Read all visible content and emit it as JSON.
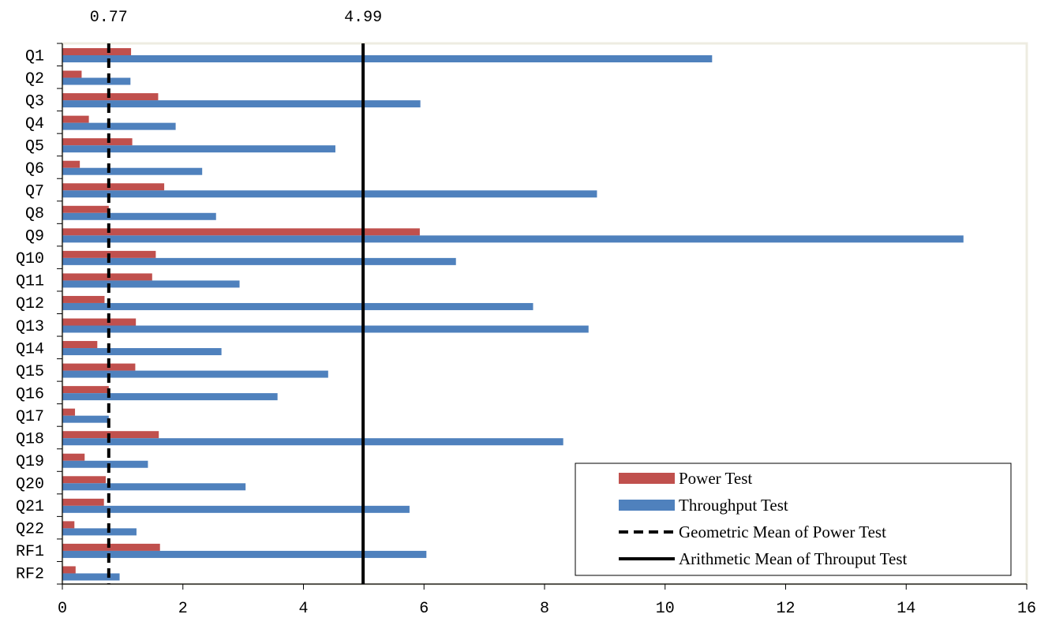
{
  "chart_data": {
    "type": "bar",
    "orientation": "horizontal",
    "categories": [
      "Q1",
      "Q2",
      "Q3",
      "Q4",
      "Q5",
      "Q6",
      "Q7",
      "Q8",
      "Q9",
      "Q10",
      "Q11",
      "Q12",
      "Q13",
      "Q14",
      "Q15",
      "Q16",
      "Q17",
      "Q18",
      "Q19",
      "Q20",
      "Q21",
      "Q22",
      "RF1",
      "RF2"
    ],
    "series": [
      {
        "name": "Power Test",
        "color": "#C0504D",
        "values": [
          1.14,
          0.32,
          1.59,
          0.44,
          1.16,
          0.29,
          1.69,
          0.77,
          5.93,
          1.55,
          1.49,
          0.7,
          1.22,
          0.58,
          1.21,
          0.77,
          0.21,
          1.6,
          0.37,
          0.72,
          0.69,
          0.2,
          1.62,
          0.22
        ]
      },
      {
        "name": "Throughput Test",
        "color": "#4F81BD",
        "values": [
          10.78,
          1.13,
          5.94,
          1.88,
          4.53,
          2.32,
          8.87,
          2.55,
          14.95,
          6.53,
          2.94,
          7.81,
          8.73,
          2.64,
          4.41,
          3.57,
          0.77,
          8.31,
          1.42,
          3.04,
          5.76,
          1.23,
          6.04,
          0.95
        ]
      }
    ],
    "reference_lines": [
      {
        "name": "Geometric Mean of Power Test",
        "value": 0.77,
        "label": "0.77",
        "style": "dashed",
        "color": "#000000"
      },
      {
        "name": "Arithmetic Mean of Throuput Test",
        "value": 4.99,
        "label": "4.99",
        "style": "solid",
        "color": "#000000"
      }
    ],
    "xlim": [
      0,
      16
    ],
    "xticks": [
      "0",
      "2",
      "4",
      "6",
      "8",
      "10",
      "12",
      "14",
      "16"
    ],
    "xlabel": "",
    "ylabel": "",
    "title": "",
    "grid": false,
    "legend_position": "bottom-right",
    "plot_border_color": "#EEECE1"
  }
}
